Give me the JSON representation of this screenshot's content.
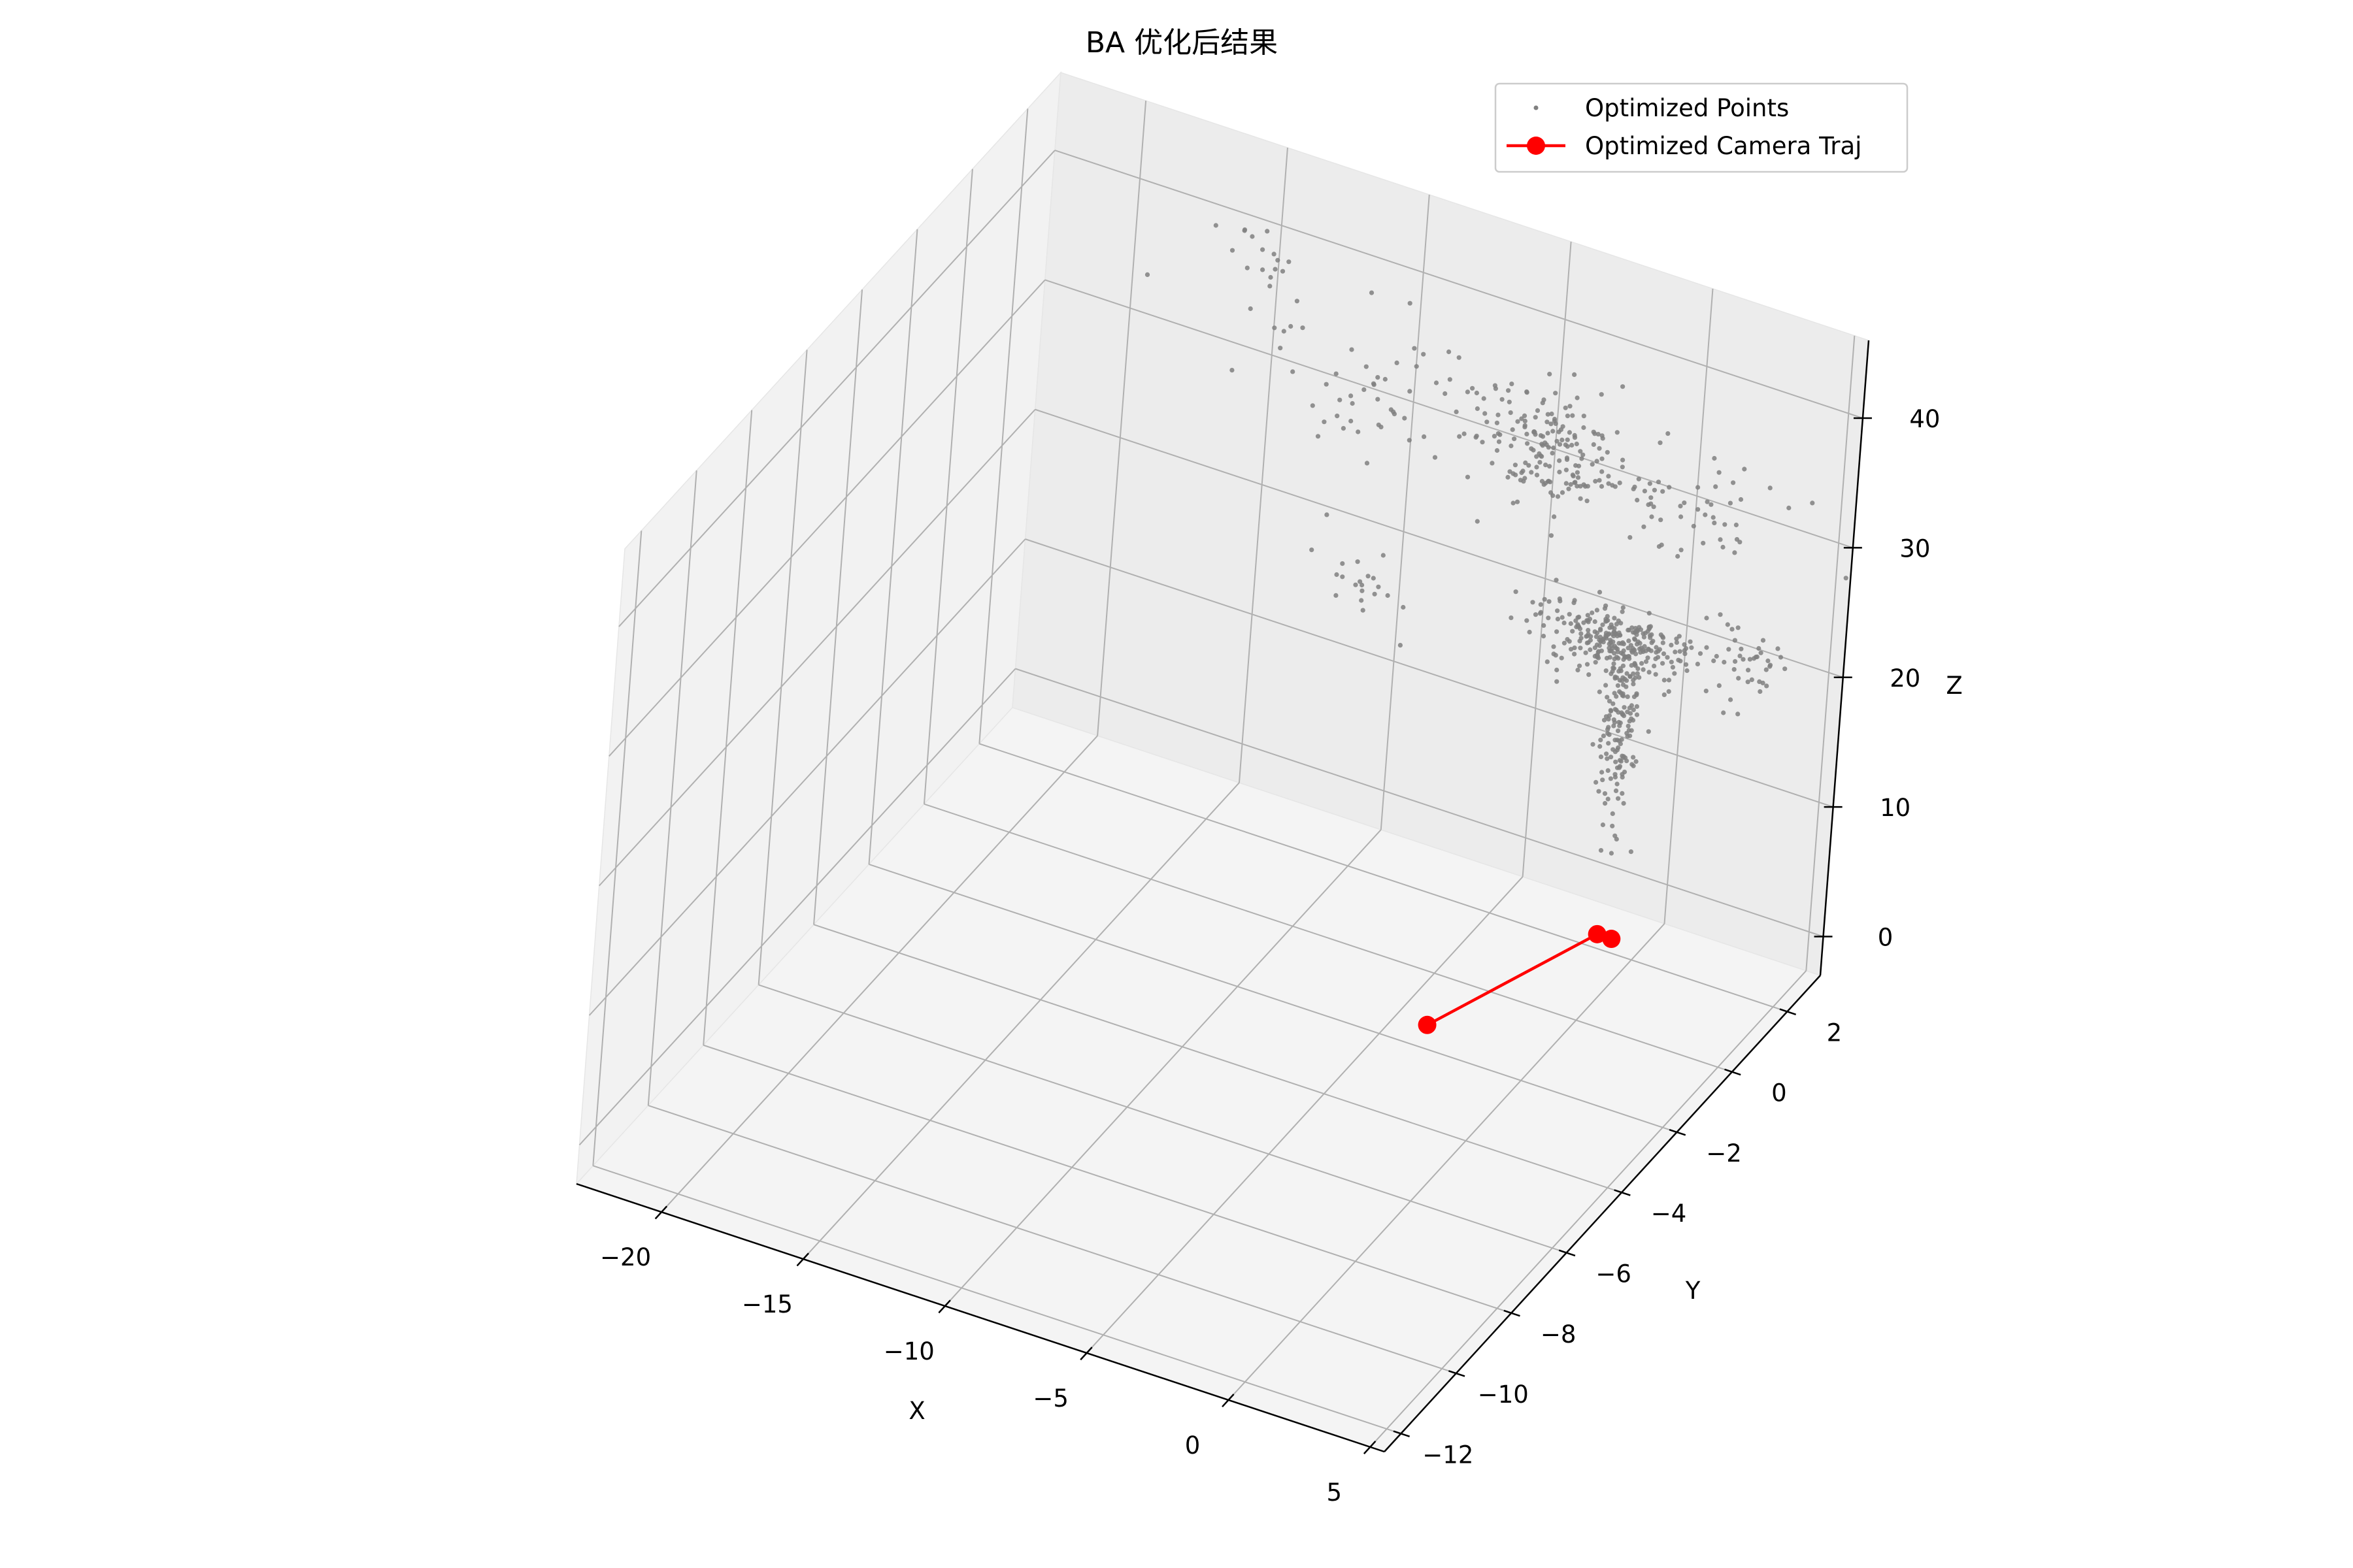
{
  "chart_data": {
    "type": "scatter",
    "projection": "3d",
    "title": "BA 优化后结果",
    "xlabel": "X",
    "ylabel": "Y",
    "zlabel": "Z",
    "xlim": [
      -23,
      5.5
    ],
    "ylim": [
      -12.6,
      3.2
    ],
    "zlim": [
      -3,
      46
    ],
    "xticks": [
      -20,
      -15,
      -10,
      -5,
      0,
      5
    ],
    "yticks": [
      -12,
      -10,
      -8,
      -6,
      -4,
      -2,
      0,
      2
    ],
    "zticks": [
      0,
      10,
      20,
      30,
      40
    ],
    "xtick_labels": [
      "−20",
      "−15",
      "−10",
      "−5",
      "0",
      "5"
    ],
    "ytick_labels": [
      "−12",
      "−10",
      "−8",
      "−6",
      "−4",
      "−2",
      "0",
      "2"
    ],
    "ztick_labels": [
      "0",
      "10",
      "20",
      "30",
      "40"
    ],
    "grid": true,
    "legend_position": "top-right",
    "legend": [
      "Optimized Points",
      "Optimized Camera Traj"
    ],
    "series": [
      {
        "name": "Optimized Points",
        "kind": "scatter",
        "color": "#808080",
        "clusters": [
          {
            "center": [
              -4.5,
              2.5,
              32
            ],
            "spread": [
              1.2,
              0.3,
              2.0
            ],
            "count": 160
          },
          {
            "center": [
              -10.0,
              2.5,
              32
            ],
            "spread": [
              2.5,
              0.3,
              3.0
            ],
            "count": 70
          },
          {
            "center": [
              -15.0,
              2.5,
              40
            ],
            "spread": [
              0.8,
              0.3,
              1.5
            ],
            "count": 15
          },
          {
            "center": [
              -0.5,
              2.5,
              31
            ],
            "spread": [
              2.0,
              0.3,
              2.0
            ],
            "count": 60
          },
          {
            "center": [
              -1.5,
              2.0,
              20.5
            ],
            "spread": [
              1.3,
              0.3,
              1.0
            ],
            "count": 260
          },
          {
            "center": [
              -1.0,
              2.0,
              14
            ],
            "spread": [
              0.3,
              0.2,
              3.5
            ],
            "count": 150
          },
          {
            "center": [
              2.8,
              2.5,
              20.5
            ],
            "spread": [
              0.6,
              0.3,
              1.0
            ],
            "count": 35
          },
          {
            "center": [
              -10.8,
              2.5,
              17.5
            ],
            "spread": [
              0.8,
              0.3,
              1.0
            ],
            "count": 20
          },
          {
            "center": [
              1.0,
              2.5,
              21
            ],
            "spread": [
              0.8,
              0.3,
              1.0
            ],
            "count": 15
          }
        ]
      },
      {
        "name": "Optimized Camera Traj",
        "kind": "line",
        "color": "#ff0000",
        "x": [
          -2.5,
          0.5,
          1.0
        ],
        "y": [
          -3.0,
          0.0,
          0.0
        ],
        "z": [
          1.8,
          4.0,
          4.0
        ]
      }
    ]
  }
}
